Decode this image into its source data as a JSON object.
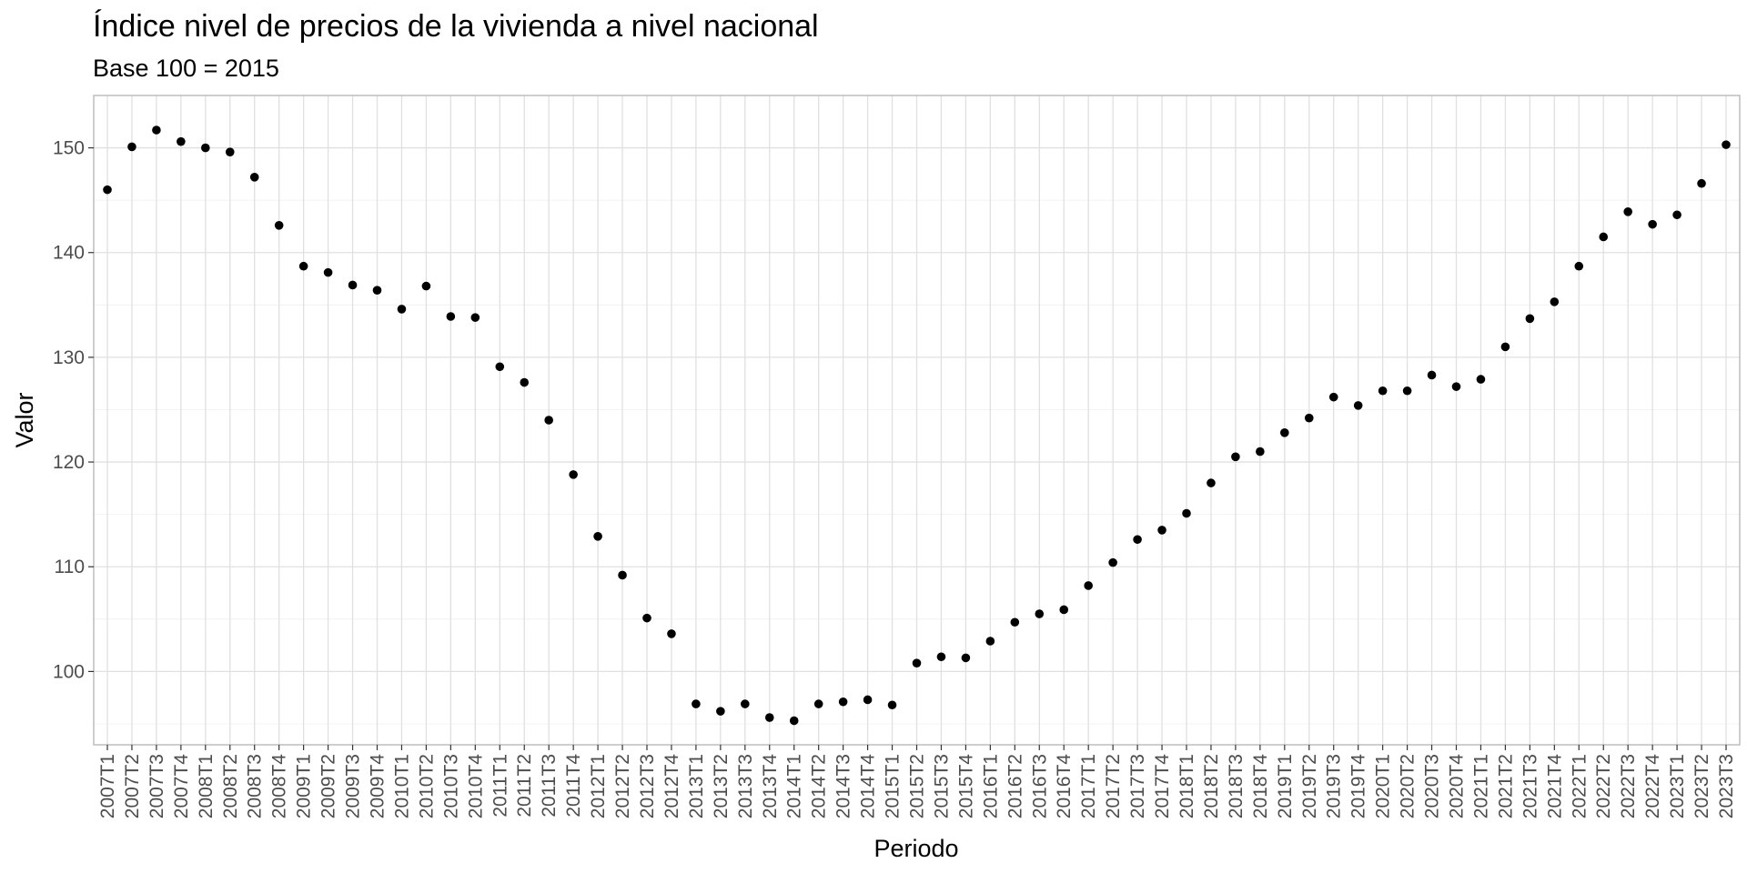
{
  "chart_data": {
    "type": "scatter",
    "title": "Índice nivel de precios de la vivienda a nivel nacional",
    "subtitle": "Base 100 = 2015",
    "xlabel": "Periodo",
    "ylabel": "Valor",
    "ylim": [
      93,
      155
    ],
    "yticks": [
      100,
      110,
      120,
      130,
      140,
      150
    ],
    "grid": true,
    "categories": [
      "2007T1",
      "2007T2",
      "2007T3",
      "2007T4",
      "2008T1",
      "2008T2",
      "2008T3",
      "2008T4",
      "2009T1",
      "2009T2",
      "2009T3",
      "2009T4",
      "2010T1",
      "2010T2",
      "2010T3",
      "2010T4",
      "2011T1",
      "2011T2",
      "2011T3",
      "2011T4",
      "2012T1",
      "2012T2",
      "2012T3",
      "2012T4",
      "2013T1",
      "2013T2",
      "2013T3",
      "2013T4",
      "2014T1",
      "2014T2",
      "2014T3",
      "2014T4",
      "2015T1",
      "2015T2",
      "2015T3",
      "2015T4",
      "2016T1",
      "2016T2",
      "2016T3",
      "2016T4",
      "2017T1",
      "2017T2",
      "2017T3",
      "2017T4",
      "2018T1",
      "2018T2",
      "2018T3",
      "2018T4",
      "2019T1",
      "2019T2",
      "2019T3",
      "2019T4",
      "2020T1",
      "2020T2",
      "2020T3",
      "2020T4",
      "2021T1",
      "2021T2",
      "2021T3",
      "2021T4",
      "2022T1",
      "2022T2",
      "2022T3",
      "2022T4",
      "2023T1",
      "2023T2",
      "2023T3"
    ],
    "values": [
      146.0,
      150.1,
      151.7,
      150.6,
      150.0,
      149.6,
      147.2,
      142.6,
      138.7,
      138.1,
      136.9,
      136.4,
      134.6,
      136.8,
      133.9,
      133.8,
      129.1,
      127.6,
      124.0,
      118.8,
      112.9,
      109.2,
      105.1,
      103.6,
      96.9,
      96.2,
      96.9,
      95.6,
      95.3,
      96.9,
      97.1,
      97.3,
      96.8,
      100.8,
      101.4,
      101.3,
      102.9,
      104.7,
      105.5,
      105.9,
      108.2,
      110.4,
      112.6,
      113.5,
      115.1,
      118.0,
      120.5,
      121.0,
      122.8,
      124.2,
      126.2,
      125.4,
      126.8,
      126.8,
      128.3,
      127.2,
      127.9,
      131.0,
      133.7,
      135.3,
      138.7,
      141.5,
      143.9,
      142.7,
      143.6,
      146.6,
      150.3
    ]
  }
}
